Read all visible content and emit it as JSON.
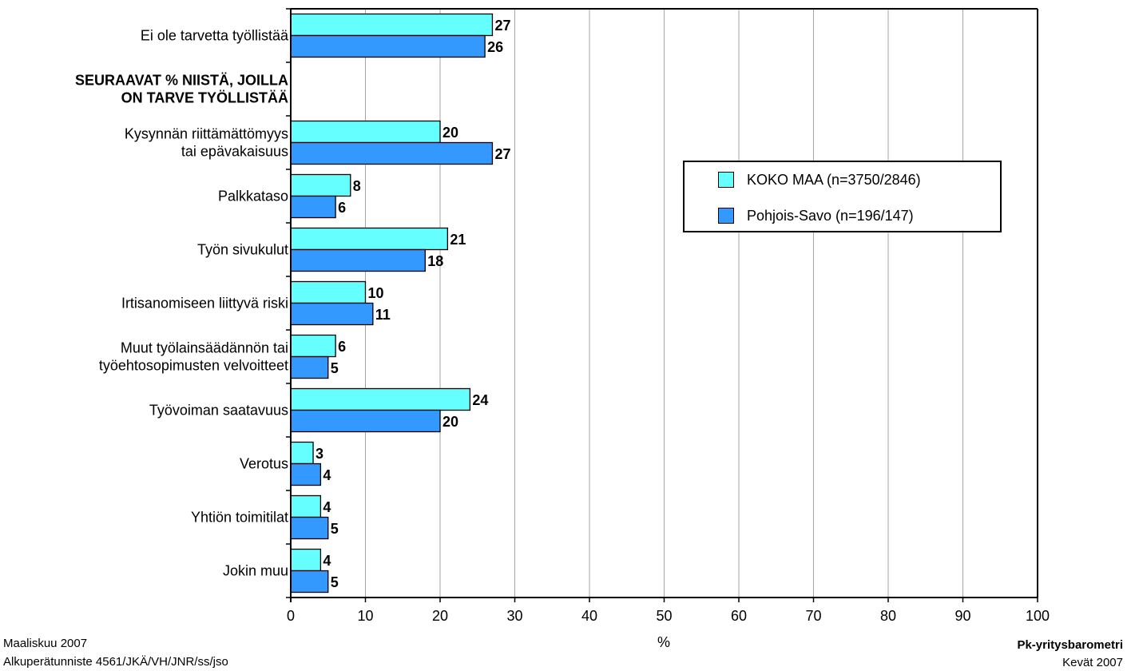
{
  "chart_data": {
    "type": "bar",
    "orientation": "horizontal",
    "categories": [
      [
        "Ei ole tarvetta työllistää"
      ],
      [
        "SEURAAVAT % NIISTÄ, JOILLA",
        "ON TARVE TYÖLLISTÄÄ"
      ],
      [
        "Kysynnän riittämättömyys",
        "tai epävakaisuus"
      ],
      [
        "Palkkataso"
      ],
      [
        "Työn sivukulut"
      ],
      [
        "Irtisanomiseen liittyvä riski"
      ],
      [
        "Muut työlainsäädännön tai",
        "työehtosopimusten velvoitteet"
      ],
      [
        "Työvoiman saatavuus"
      ],
      [
        "Verotus"
      ],
      [
        "Yhtiön toimitilat"
      ],
      [
        "Jokin muu"
      ]
    ],
    "header_category_index": 1,
    "series": [
      {
        "name": "KOKO MAA (n=3750/2846)",
        "color": "#66ffff",
        "values": [
          27,
          null,
          20,
          8,
          21,
          10,
          6,
          24,
          3,
          4,
          4
        ]
      },
      {
        "name": "Pohjois-Savo (n=196/147)",
        "color": "#3399ff",
        "values": [
          26,
          null,
          27,
          6,
          18,
          11,
          5,
          20,
          4,
          5,
          5
        ]
      }
    ],
    "xlabel": "%",
    "xlim": [
      0,
      100
    ],
    "xticks": [
      0,
      10,
      20,
      30,
      40,
      50,
      60,
      70,
      80,
      90,
      100
    ],
    "grid": true,
    "legend_position": "right"
  },
  "footer": {
    "left_line1": "Maaliskuu 2007",
    "left_line2": "Alkuperätunniste 4561/JKÄ/VH/JNR/ss/jso",
    "right_line1": "Pk-yritysbarometri",
    "right_line2": "Kevät 2007"
  }
}
